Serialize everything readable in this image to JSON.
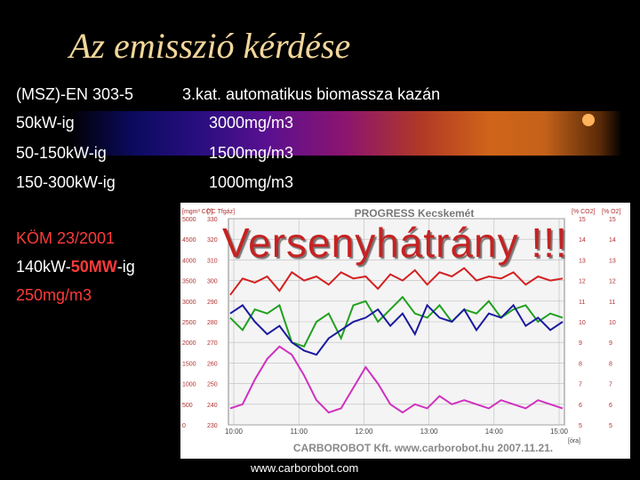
{
  "slide": {
    "title": "Az emisszió kérdése"
  },
  "table": {
    "left_header": "(MSZ)-EN 303-5",
    "right_header": "3.kat. automatikus biomassza kazán",
    "rows": [
      {
        "range": "50kW-ig",
        "limit": "3000mg/m3"
      },
      {
        "range": "50-150kW-ig",
        "limit": "1500mg/m3"
      },
      {
        "range": "150-300kW-ig",
        "limit": "1000mg/m3"
      }
    ]
  },
  "kom": {
    "line1": "KÖM 23/2001",
    "line2_prefix": "140kW-",
    "line2_highlight": "50MW",
    "line2_suffix": "-ig",
    "line3": "250mg/m3"
  },
  "chart_data": {
    "type": "line",
    "title": "PROGRESS Kecskemét",
    "footer": "CARBOROBOT Kft. www.carborobot.hu 2007.11.21.",
    "left_axes": [
      {
        "label": "[mgm³ CO]",
        "ticks": [
          "5000",
          "4500",
          "4000",
          "3500",
          "3000",
          "2500",
          "2000",
          "1500",
          "1000",
          "500",
          "0"
        ]
      },
      {
        "label": "[°C Tfgáz]",
        "ticks": [
          "330",
          "320",
          "310",
          "300",
          "290",
          "280",
          "270",
          "260",
          "250",
          "240",
          "230"
        ]
      }
    ],
    "right_axes": [
      {
        "label": "[% CO2]",
        "ticks": [
          "15",
          "14",
          "13",
          "12",
          "11",
          "10",
          "9",
          "8",
          "7",
          "6",
          "5"
        ]
      },
      {
        "label": "[% O2]",
        "ticks": [
          "15",
          "14",
          "13",
          "12",
          "11",
          "10",
          "9",
          "8",
          "7",
          "6",
          "5"
        ]
      }
    ],
    "x_ticks": [
      "10:00",
      "11:00",
      "12:00",
      "13:00",
      "14:00",
      "15:00"
    ],
    "x_unit": "[óra]",
    "series": [
      {
        "color": "#d42020",
        "values": [
          3150,
          3550,
          3450,
          3600,
          3250,
          3700,
          3500,
          3600,
          3400,
          3700,
          3550,
          3600,
          3300,
          3650,
          3500,
          3750,
          3400,
          3700,
          3600,
          3800,
          3500,
          3600,
          3550,
          3700,
          3400,
          3600,
          3500,
          3550
        ]
      },
      {
        "color": "#1fa01f",
        "values": [
          2600,
          2300,
          2800,
          2700,
          2900,
          2000,
          1900,
          2500,
          2700,
          2100,
          2900,
          3000,
          2500,
          2800,
          3100,
          2700,
          2600,
          2900,
          2500,
          2800,
          2700,
          3000,
          2600,
          2800,
          2900,
          2500,
          2700,
          2600
        ]
      },
      {
        "color": "#1a1aa0",
        "values": [
          2700,
          2900,
          2500,
          2200,
          2400,
          2000,
          1800,
          1700,
          2100,
          2300,
          2500,
          2600,
          2800,
          2400,
          2700,
          2200,
          2900,
          2600,
          2500,
          2800,
          2300,
          2700,
          2600,
          2900,
          2400,
          2600,
          2300,
          2500
        ]
      },
      {
        "color": "#d030c0",
        "values": [
          400,
          500,
          1100,
          1600,
          1900,
          1700,
          1200,
          600,
          300,
          400,
          900,
          1400,
          1000,
          500,
          300,
          500,
          400,
          700,
          500,
          600,
          500,
          400,
          600,
          500,
          400,
          600,
          500,
          400
        ]
      }
    ]
  },
  "overlay_text": "Versenyhátrány !!!",
  "footer_url": "www.carborobot.com"
}
